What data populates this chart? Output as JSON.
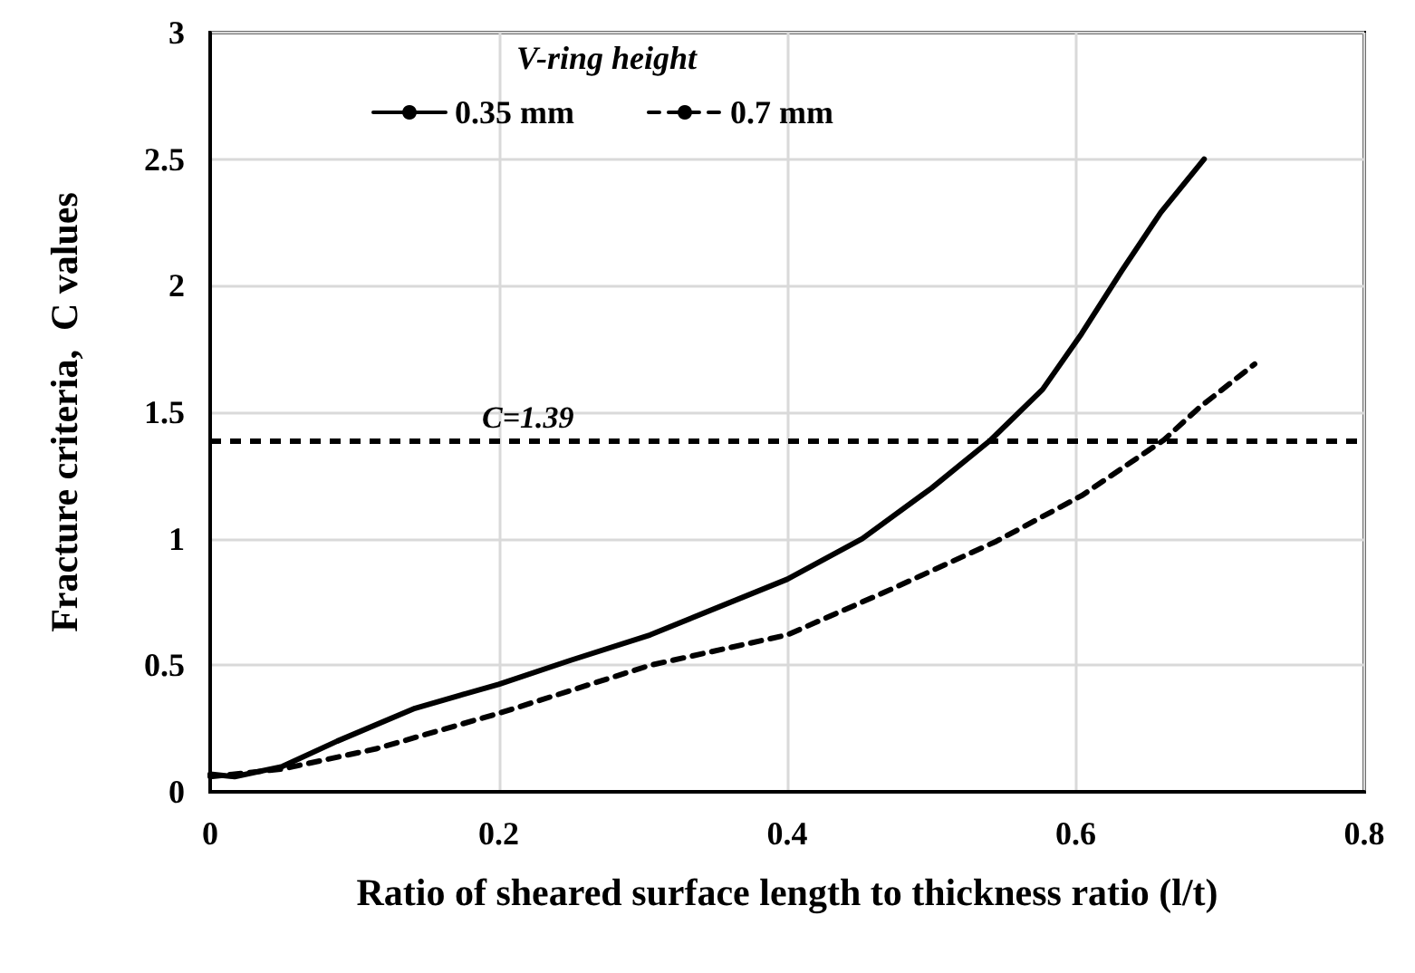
{
  "chart_data": {
    "type": "line",
    "xlabel": "Ratio of sheared surface length to thickness ratio (l/t)",
    "ylabel": "Fracture criteria,  C values",
    "legend_title": "V-ring height",
    "series": [
      {
        "name": "0.35 mm",
        "color": "#000000",
        "line_style": "solid",
        "x": [
          0,
          0.017,
          0.05,
          0.088,
          0.142,
          0.2,
          0.25,
          0.305,
          0.4,
          0.452,
          0.5,
          0.541,
          0.577,
          0.604,
          0.632,
          0.659,
          0.689
        ],
        "values": [
          0.07,
          0.06,
          0.1,
          0.2,
          0.33,
          0.425,
          0.52,
          0.62,
          0.84,
          1.0,
          1.2,
          1.39,
          1.59,
          1.81,
          2.06,
          2.29,
          2.5
        ]
      },
      {
        "name": "0.7 mm",
        "color": "#000000",
        "line_style": "dashed",
        "x": [
          0,
          0.05,
          0.115,
          0.2,
          0.305,
          0.4,
          0.468,
          0.545,
          0.604,
          0.661,
          0.686,
          0.724
        ],
        "values": [
          0.06,
          0.09,
          0.17,
          0.31,
          0.5,
          0.62,
          0.79,
          0.99,
          1.17,
          1.39,
          1.52,
          1.69
        ]
      }
    ],
    "ref_lines": [
      {
        "axis": "y",
        "value": 1.39,
        "label": "C=1.39",
        "color": "#000000",
        "line_style": "dashed"
      }
    ],
    "xlim": [
      0,
      0.8
    ],
    "xticks": [
      0,
      0.2,
      0.4,
      0.6,
      0.8
    ],
    "ylim": [
      0,
      3
    ],
    "yticks": [
      0,
      0.5,
      1,
      1.5,
      2,
      2.5,
      3
    ],
    "grid": true,
    "legend": "top",
    "marker": "none"
  }
}
